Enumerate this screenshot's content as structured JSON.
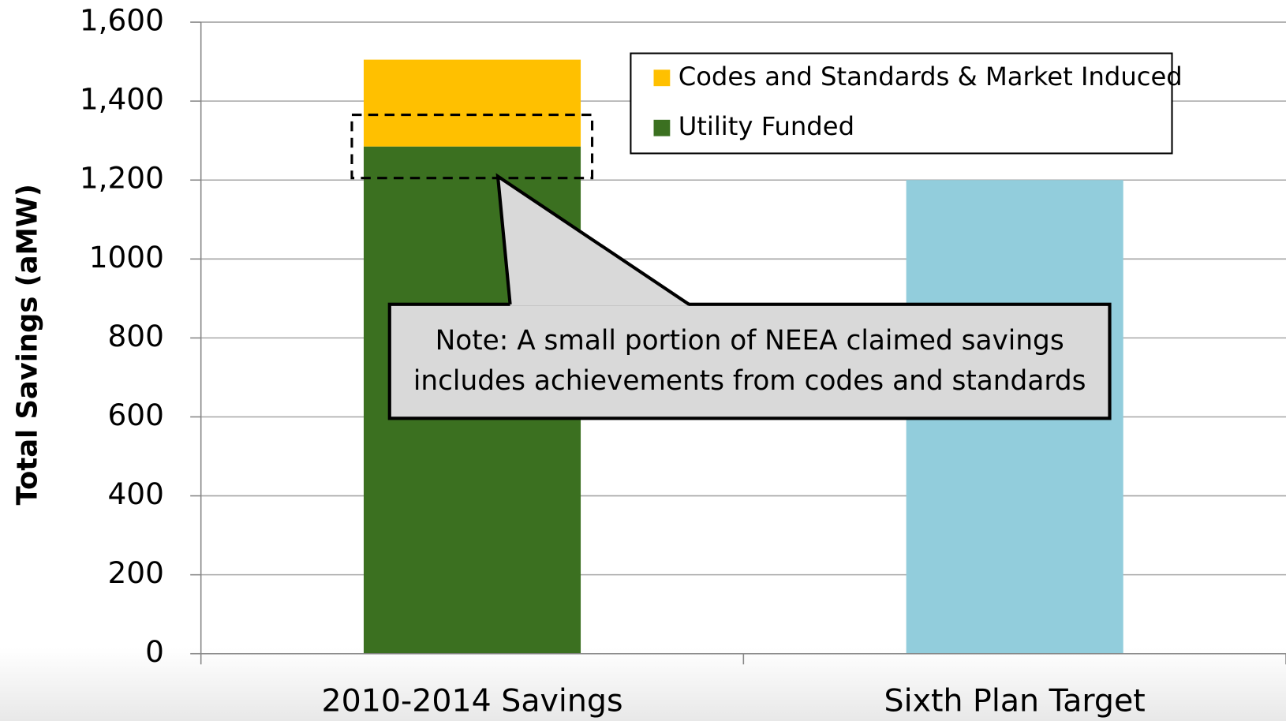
{
  "chart_data": {
    "type": "stacked_bar",
    "y_label": "Total Savings (aMW)",
    "categories": [
      "2010-2014 Savings",
      "Sixth Plan Target"
    ],
    "series": [
      {
        "name": "Utility Funded",
        "color": "#3b7020",
        "values": [
          1285,
          null
        ]
      },
      {
        "name": "Codes and Standards & Market Induced",
        "color": "#ffc000",
        "values": [
          220,
          null
        ]
      },
      {
        "color": "#92cddc",
        "values": [
          null,
          1200
        ]
      }
    ],
    "ylim": [
      0,
      1600
    ],
    "yticks": [
      0,
      200,
      400,
      600,
      800,
      1000,
      {
        "value": 1200,
        "label": "1,200"
      },
      {
        "value": 1400,
        "label": "1,400"
      },
      {
        "value": 1600,
        "label": "1,600"
      }
    ],
    "grid": true,
    "legend": "upper right",
    "annotation": [
      "Note: A small portion of NEEA claimed savings",
      "includes achievements from codes and standards"
    ]
  }
}
